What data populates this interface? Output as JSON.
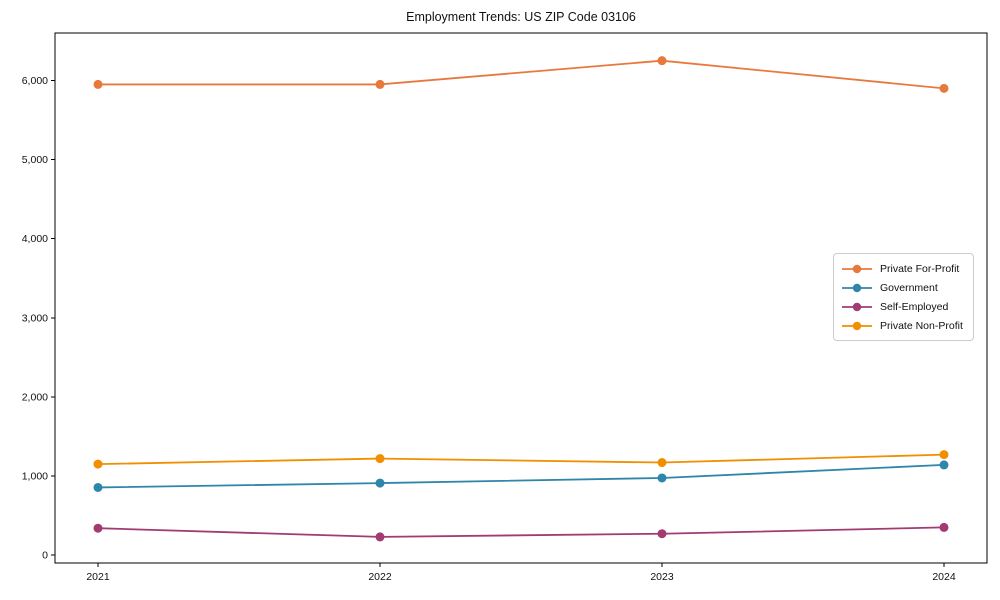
{
  "chart_data": {
    "type": "line",
    "title": "Employment Trends: US ZIP Code 03106",
    "x": [
      2021,
      2022,
      2023,
      2024
    ],
    "x_tick_labels": [
      "2021",
      "2022",
      "2023",
      "2024"
    ],
    "y_ticks": [
      0,
      1000,
      2000,
      3000,
      4000,
      5000,
      6000
    ],
    "y_tick_labels": [
      "0",
      "1,000",
      "2,000",
      "3,000",
      "4,000",
      "5,000",
      "6,000"
    ],
    "ylim": [
      -100,
      6600
    ],
    "grid": false,
    "legend_position": "center-right",
    "axis_color": "#000000",
    "series": [
      {
        "name": "Private For-Profit",
        "color": "#E8793D",
        "values": [
          5950,
          5950,
          6250,
          5900
        ]
      },
      {
        "name": "Government",
        "color": "#2E86AB",
        "values": [
          855,
          910,
          975,
          1140
        ]
      },
      {
        "name": "Self-Employed",
        "color": "#A23B72",
        "values": [
          340,
          230,
          270,
          350
        ]
      },
      {
        "name": "Private Non-Profit",
        "color": "#F18F01",
        "values": [
          1150,
          1220,
          1170,
          1270
        ]
      }
    ]
  }
}
